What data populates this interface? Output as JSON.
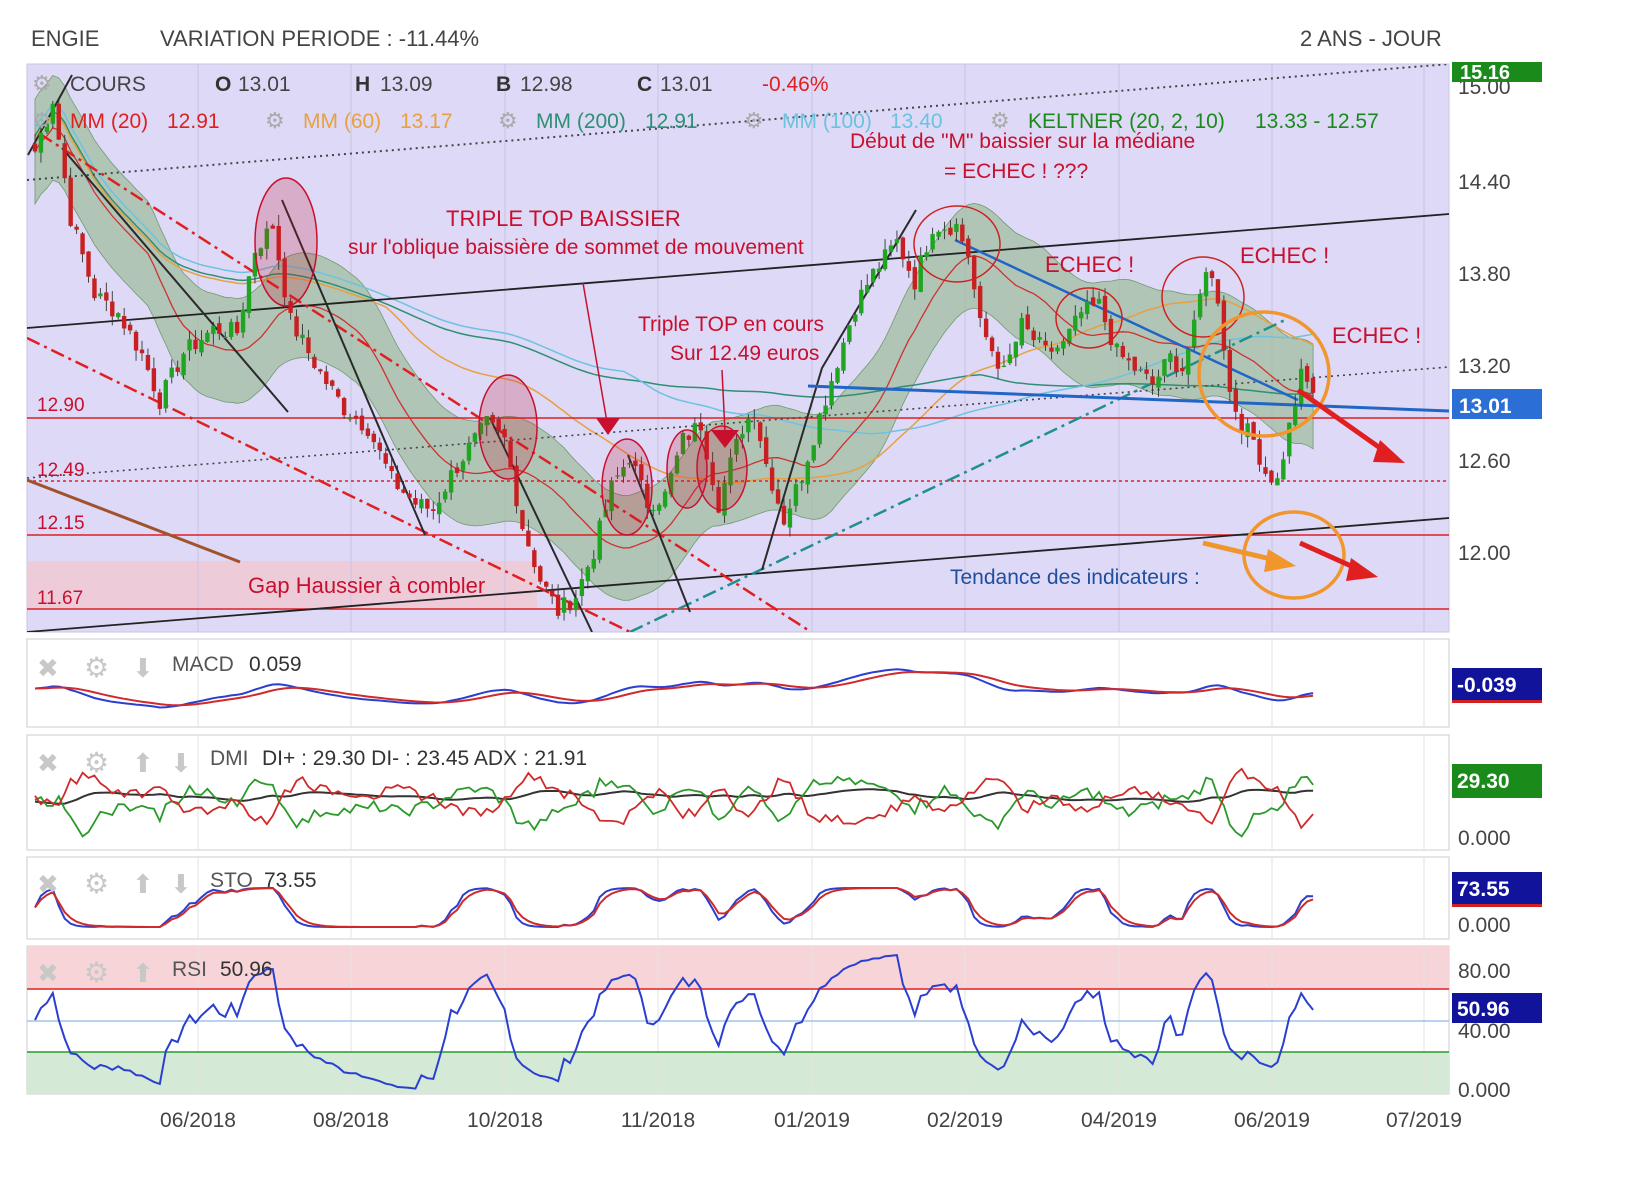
{
  "header": {
    "stock": "ENGIE",
    "variation": "VARIATION PERIODE : -11.44%",
    "period": "2 ANS - JOUR"
  },
  "main_legend": {
    "cours": "COURS",
    "o_label": "O",
    "o_value": "13.01",
    "h_label": "H",
    "h_value": "13.09",
    "b_label": "B",
    "b_value": "12.98",
    "c_label": "C",
    "c_value": "13.01",
    "change": "-0.46%",
    "mm20": "MM (20)",
    "mm20_value": "12.91",
    "mm60": "MM (60)",
    "mm60_value": "13.17",
    "mm200": "MM (200)",
    "mm200_value": "12.91",
    "mm100": "MM (100)",
    "mm100_value": "13.40",
    "keltner": "KELTNER (20, 2, 10)",
    "keltner_value": "13.33 - 12.57"
  },
  "colors": {
    "panel_bg": "#ddd9f7",
    "candle_up": "#1fa51f",
    "candle_down": "#c82020",
    "mm20": "#d03030",
    "mm60": "#e8a040",
    "mm200": "#2f8f75",
    "mm100": "#6cc3df",
    "keltner_fill": "#9fbf9f",
    "annotation": "#c8102e",
    "orange": "#f0962d",
    "trend_blue": "#2166c6"
  },
  "annotations": {
    "triple_top_title": "TRIPLE TOP BAISSIER",
    "triple_top_sub": "sur l'oblique baissière de sommet de mouvement",
    "triple_top_cours_1": "Triple TOP en cours",
    "triple_top_cours_2": "Sur 12.49 euros",
    "debut_m_1": "Début de \"M\" baissier sur la médiane",
    "debut_m_2": "= ECHEC ! ???",
    "echec1": "ECHEC !",
    "echec2": "ECHEC !",
    "echec3": "ECHEC !",
    "gap": "Gap Haussier à combler",
    "tendance": "Tendance des indicateurs :"
  },
  "indicators": {
    "macd_label": "MACD",
    "macd_value": "0.059",
    "macd_badge": "-0.039",
    "dmi_label": "DMI",
    "dmi_values": "DI+ : 29.30 DI- : 23.45 ADX : 21.91",
    "dmi_badge": "29.30",
    "sto_label": "STO",
    "sto_value": "73.55",
    "sto_badge": "73.55",
    "rsi_label": "RSI",
    "rsi_value": "50.96",
    "rsi_badge": "50.96"
  },
  "chart_data": {
    "type": "candlestick",
    "title": "ENGIE",
    "price_axis": {
      "ticks": [
        "15.00",
        "14.40",
        "13.80",
        "13.20",
        "12.60",
        "12.00"
      ],
      "ylim": [
        11.49,
        15.07
      ],
      "reference_levels": [
        {
          "label": "12.90",
          "value": 12.9,
          "style": "solid"
        },
        {
          "label": "12.49",
          "value": 12.49,
          "style": "dotted"
        },
        {
          "label": "12.15",
          "value": 12.15,
          "style": "solid"
        },
        {
          "label": "11.67",
          "value": 11.67,
          "style": "solid"
        }
      ],
      "last_price_badge": "13.01",
      "top_badge": "15.16"
    },
    "x_ticks": [
      "06/2018",
      "08/2018",
      "10/2018",
      "11/2018",
      "01/2019",
      "02/2019",
      "04/2019",
      "06/2019",
      "07/2019"
    ],
    "price_path": [
      [
        0,
        14.52
      ],
      [
        3,
        14.85
      ],
      [
        6,
        14.1
      ],
      [
        10,
        13.62
      ],
      [
        14,
        13.5
      ],
      [
        18,
        13.24
      ],
      [
        21,
        12.95
      ],
      [
        25,
        13.25
      ],
      [
        30,
        13.4
      ],
      [
        34,
        13.38
      ],
      [
        37,
        13.9
      ],
      [
        40,
        14.05
      ],
      [
        43,
        13.45
      ],
      [
        48,
        13.12
      ],
      [
        52,
        12.9
      ],
      [
        56,
        12.78
      ],
      [
        60,
        12.45
      ],
      [
        64,
        12.3
      ],
      [
        67,
        12.26
      ],
      [
        70,
        12.48
      ],
      [
        73,
        12.65
      ],
      [
        76,
        12.8
      ],
      [
        79,
        12.7
      ],
      [
        82,
        12.16
      ],
      [
        85,
        11.82
      ],
      [
        88,
        11.62
      ],
      [
        91,
        11.72
      ],
      [
        94,
        12.0
      ],
      [
        97,
        12.4
      ],
      [
        100,
        12.6
      ],
      [
        103,
        12.3
      ],
      [
        106,
        12.35
      ],
      [
        109,
        12.7
      ],
      [
        112,
        12.8
      ],
      [
        115,
        12.3
      ],
      [
        117,
        12.55
      ],
      [
        119,
        12.78
      ],
      [
        121,
        12.89
      ],
      [
        123,
        12.55
      ],
      [
        126,
        12.2
      ],
      [
        129,
        12.48
      ],
      [
        132,
        12.85
      ],
      [
        135,
        13.2
      ],
      [
        138,
        13.55
      ],
      [
        141,
        13.75
      ],
      [
        145,
        13.95
      ],
      [
        148,
        13.7
      ],
      [
        151,
        14.05
      ],
      [
        155,
        14.05
      ],
      [
        157,
        13.87
      ],
      [
        159,
        13.42
      ],
      [
        163,
        13.12
      ],
      [
        166,
        13.42
      ],
      [
        170,
        13.25
      ],
      [
        173,
        13.3
      ],
      [
        176,
        13.5
      ],
      [
        179,
        13.55
      ],
      [
        182,
        13.25
      ],
      [
        185,
        13.15
      ],
      [
        188,
        13.05
      ],
      [
        191,
        13.22
      ],
      [
        193,
        13.15
      ],
      [
        195,
        13.4
      ],
      [
        197,
        13.8
      ],
      [
        199,
        13.6
      ],
      [
        201,
        13.0
      ],
      [
        203,
        12.8
      ],
      [
        205,
        12.7
      ],
      [
        207,
        12.5
      ],
      [
        209,
        12.44
      ],
      [
        211,
        12.78
      ],
      [
        213,
        13.1
      ],
      [
        215,
        13.01
      ]
    ],
    "indicators": {
      "MACD": 0.059,
      "DMI": {
        "DI+": 29.3,
        "DI-": 23.45,
        "ADX": 21.91
      },
      "STO": 73.55,
      "RSI": 50.96,
      "dmi_axis_ticks": [
        "0.000"
      ],
      "sto_axis_ticks": [
        "0.000"
      ],
      "rsi_axis_ticks": [
        "80.00",
        "40.00",
        "0.000"
      ]
    }
  }
}
